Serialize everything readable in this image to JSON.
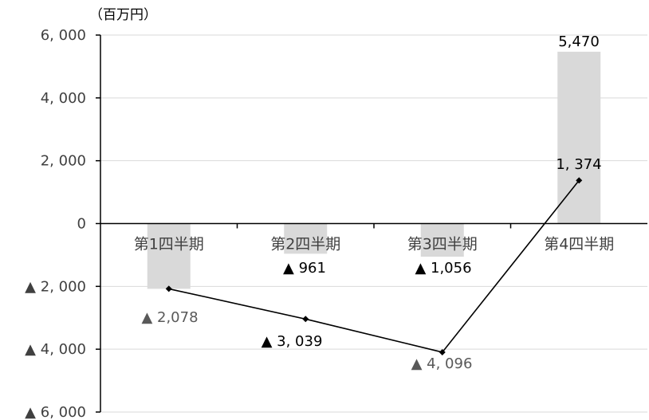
{
  "chart_data": {
    "type": "bar",
    "unit_label": "（百万円）",
    "categories": [
      "第1四半期",
      "第2四半期",
      "第3四半期",
      "第4四半期"
    ],
    "ylim": [
      -6000,
      6000
    ],
    "yticks": [
      6000,
      4000,
      2000,
      0,
      -2000,
      -4000,
      -6000
    ],
    "ytick_labels": [
      "6, 000",
      "4, 000",
      "2, 000",
      "0",
      "▲ 2, 000",
      "▲ 4, 000",
      "▲ 6, 000"
    ],
    "grid": true,
    "series": [
      {
        "type": "bar",
        "values": [
          -2078,
          -961,
          -1056,
          5470
        ],
        "labels": [
          "▲ 2,078",
          "▲ 961",
          "▲ 1,056",
          "5,470"
        ],
        "color": "#d9d9d9",
        "label_colors": [
          "#595959",
          "#000000",
          "#000000",
          "#000000"
        ]
      },
      {
        "type": "line",
        "values": [
          -2078,
          -3039,
          -4096,
          1374
        ],
        "labels": [
          "",
          "▲  3, 039",
          "▲  4, 096",
          "1, 374"
        ],
        "color": "#000000",
        "label_colors": [
          "#595959",
          "#000000",
          "#595959",
          "#000000"
        ]
      }
    ]
  }
}
